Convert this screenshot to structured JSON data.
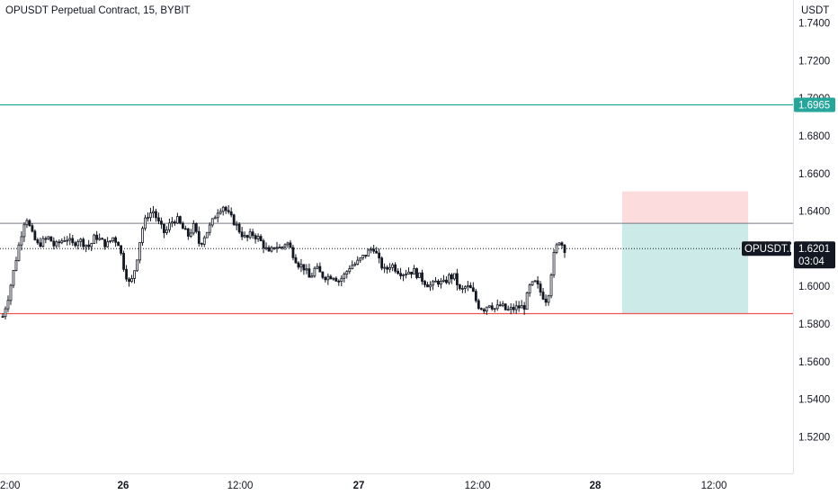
{
  "header": {
    "title": "OPUSDT Perpetual Contract, 15, BYBIT"
  },
  "price_axis": {
    "currency": "USDT"
  },
  "colors": {
    "resistance_line": "#26a69a",
    "support_line": "#ef5350",
    "range_line": "#131722",
    "stop_zone": "#fcdcdc",
    "target_zone": "#cceae7",
    "candle": "#131722",
    "tag_resistance": "#26a69a",
    "tag_current": "#131722"
  },
  "chart_data": {
    "type": "candlestick",
    "ylim": [
      1.5,
      1.75
    ],
    "y_ticks": [
      "1.5200",
      "1.5400",
      "1.5600",
      "1.5800",
      "1.6000",
      "1.6200",
      "1.6400",
      "1.6600",
      "1.6800",
      "1.7000",
      "1.7200",
      "1.7400"
    ],
    "x_ticks": [
      "2:00",
      "26",
      "12:00",
      "27",
      "12:00",
      "28",
      "12:00"
    ],
    "close_path": [
      1.584,
      1.595,
      1.61,
      1.625,
      1.638,
      1.628,
      1.622,
      1.624,
      1.626,
      1.621,
      1.624,
      1.626,
      1.622,
      1.625,
      1.623,
      1.621,
      1.627,
      1.624,
      1.622,
      1.626,
      1.623,
      1.609,
      1.6,
      1.612,
      1.63,
      1.638,
      1.64,
      1.633,
      1.628,
      1.634,
      1.636,
      1.631,
      1.627,
      1.632,
      1.622,
      1.628,
      1.633,
      1.64,
      1.643,
      1.638,
      1.634,
      1.629,
      1.625,
      1.628,
      1.626,
      1.622,
      1.617,
      1.622,
      1.62,
      1.624,
      1.618,
      1.612,
      1.61,
      1.604,
      1.61,
      1.606,
      1.605,
      1.606,
      1.603,
      1.606,
      1.611,
      1.612,
      1.615,
      1.618,
      1.621,
      1.613,
      1.608,
      1.612,
      1.609,
      1.607,
      1.608,
      1.608,
      1.605,
      1.602,
      1.6,
      1.603,
      1.601,
      1.605,
      1.605,
      1.597,
      1.6,
      1.598,
      1.59,
      1.588,
      1.591,
      1.588,
      1.59,
      1.587,
      1.588,
      1.589,
      1.589,
      1.6,
      1.602,
      1.596,
      1.592,
      1.615,
      1.625,
      1.62
    ],
    "last_price": "1.6201",
    "last_symbol": "OPUSDT.P",
    "countdown": "03:04",
    "resistance_level": 1.6965,
    "resistance_label": "1.6965",
    "support_level": 1.5855,
    "range_high": 1.6335,
    "position": {
      "entry": 1.6335,
      "stop": 1.6505,
      "target": 1.5855
    }
  }
}
